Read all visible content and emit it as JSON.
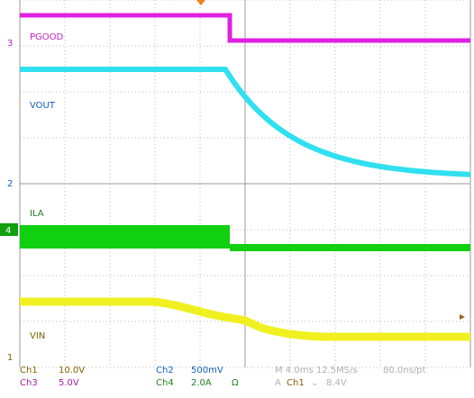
{
  "traces": [
    {
      "label": "PGOOD",
      "channel": "3"
    },
    {
      "label": "VOUT",
      "channel": "2"
    },
    {
      "label": "ILA",
      "channel": "4"
    },
    {
      "label": "VIN",
      "channel": "1"
    }
  ],
  "status": {
    "row1": [
      "Ch1",
      "10.0V",
      "Ch2",
      "500mV",
      "M 4.0ms 12.5MS/s",
      "80.0ns/pt"
    ],
    "row2": [
      "Ch3",
      "5.0V",
      "Ch4",
      "2.0A",
      "Ω",
      "A",
      "Ch1",
      "⌄",
      "8.4V"
    ]
  }
}
